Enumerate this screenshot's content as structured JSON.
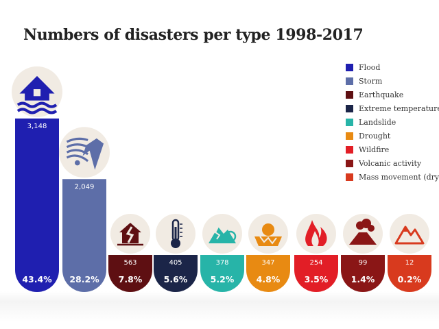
{
  "chart_data": {
    "type": "bar",
    "title": "Numbers of disasters per type 1998-2017",
    "categories": [
      "Flood",
      "Storm",
      "Earthquake",
      "Extreme temperature",
      "Landslide",
      "Drought",
      "Wildfire",
      "Volcanic activity",
      "Mass movement (dry)"
    ],
    "values": [
      3148,
      2049,
      563,
      405,
      378,
      347,
      254,
      99,
      12
    ],
    "value_labels": [
      "3,148",
      "2,049",
      "563",
      "405",
      "378",
      "347",
      "254",
      "99",
      "12"
    ],
    "percent_labels": [
      "43.4%",
      "28.2%",
      "7.8%",
      "5.6%",
      "5.2%",
      "4.8%",
      "3.5%",
      "1.4%",
      "0.2%"
    ],
    "colors": [
      "#1f1fb0",
      "#5d6ea8",
      "#5e0f12",
      "#1b2548",
      "#27b4a8",
      "#e88a12",
      "#e21e26",
      "#8a1616",
      "#d83a1e"
    ],
    "icons": [
      "flood-house-icon",
      "storm-icon",
      "earthquake-house-icon",
      "thermometer-icon",
      "landslide-icon",
      "drought-icon",
      "wildfire-icon",
      "volcano-icon",
      "mountain-icon"
    ],
    "legend_position": "top-right",
    "grid": false
  }
}
